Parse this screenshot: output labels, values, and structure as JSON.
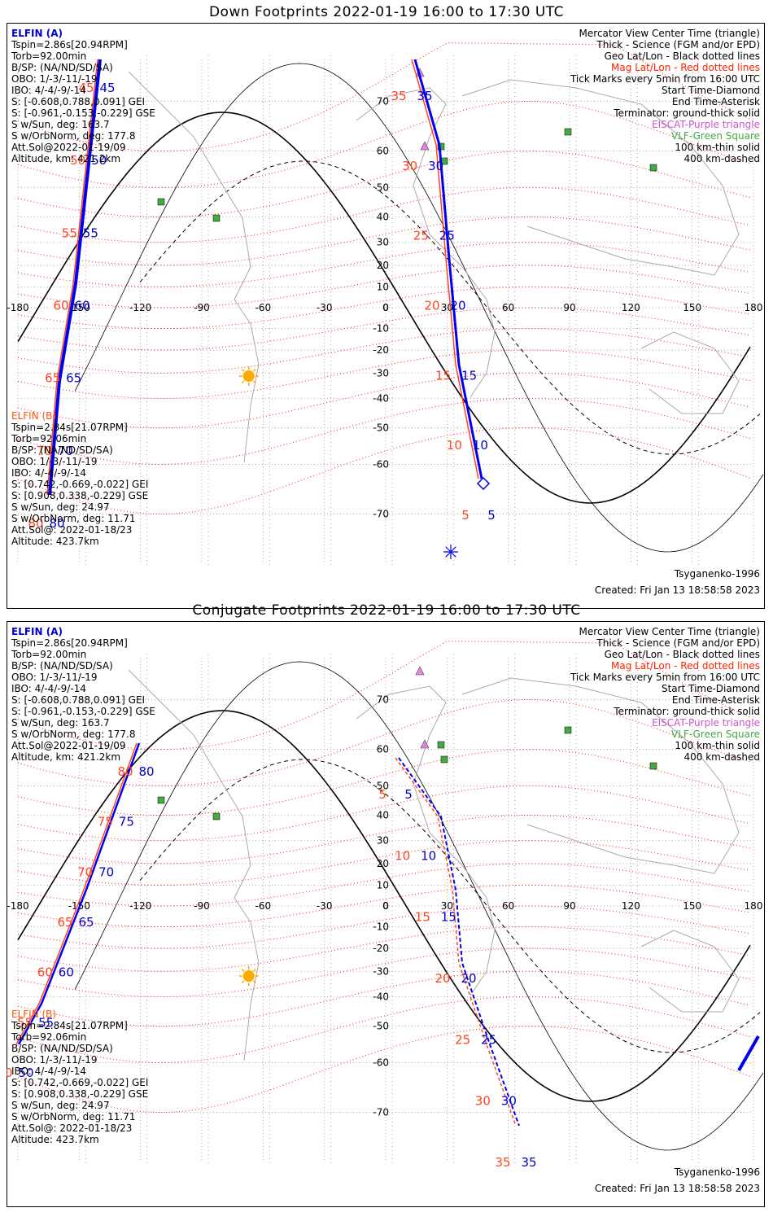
{
  "panels": [
    {
      "title": "Down Footprints 2022-01-19 16:00 to 17:30 UTC",
      "info_a": {
        "name": "ELFIN (A)",
        "lines": [
          "Tspin=2.86s[20.94RPM]",
          "Torb=92.00min",
          "B/SP: (NA/ND/SD/SA)",
          "OBO: 1/-3/-11/-19",
          "IBO: 4/-4/-9/-14",
          "S: [-0.608,0.788,0.091] GEI",
          "S: [-0.961,-0.153,-0.229] GSE",
          "S w/Sun, deg: 163.7",
          "S w/OrbNorm, deg: 177.8",
          "Att.Sol@2022-01-19/09",
          "Altitude, km: 421.2km"
        ]
      },
      "info_b": {
        "name": "ELFIN (B)",
        "lines": [
          "Tspin=2.84s[21.07RPM]",
          "Torb=92.06min",
          "B/SP: (NA/ND/SD/SA)",
          "OBO: 1/-3/-11/-19",
          "IBO: 4/-4/-9/-14",
          "S: [0.742,-0.669,-0.022] GEI",
          "S: [0.908,0.338,-0.229] GSE",
          "S w/Sun, deg: 24.97",
          "S w/OrbNorm, deg: 11.71",
          "Att.Sol@: 2022-01-18/23",
          "Altitude: 423.7km"
        ]
      },
      "legend": [
        {
          "text": "Mercator View Center Time (triangle)",
          "color": "#000000"
        },
        {
          "text": "Thick - Science (FGM and/or EPD)",
          "color": "#000000"
        },
        {
          "text": "Geo Lat/Lon - Black dotted lines",
          "color": "#000000"
        },
        {
          "text": "Mag Lat/Lon - Red dotted lines",
          "color": "#ff2200"
        },
        {
          "text": "Tick Marks every 5min from 16:00 UTC",
          "color": "#000000"
        },
        {
          "text": "Start Time-Diamond",
          "color": "#000000"
        },
        {
          "text": "End Time-Asterisk",
          "color": "#000000"
        },
        {
          "text": "Terminator: ground-thick solid",
          "color": "#000000"
        },
        {
          "text": "EISCAT-Purple triangle",
          "color": "#cc55cc"
        },
        {
          "text": "VLF-Green Square",
          "color": "#44aa44"
        },
        {
          "text": "100 km-thin solid",
          "color": "#000000"
        },
        {
          "text": "400 km-dashed",
          "color": "#000000"
        }
      ],
      "model": "Tsyganenko-1996",
      "created": "Created: Fri Jan 13 18:58:58 2023",
      "lon_labels": [
        "-180",
        "-150",
        "-120",
        "-90",
        "-60",
        "-30",
        "0",
        "30",
        "60",
        "90",
        "120",
        "150",
        "180"
      ],
      "lat_labels": [
        "70",
        "60",
        "50",
        "40",
        "30",
        "20",
        "10",
        "0",
        "-10",
        "-20",
        "-30",
        "-40",
        "-50",
        "-60",
        "-70"
      ],
      "track_a_labels": [
        "45",
        "50",
        "55",
        "60",
        "65",
        "70",
        "80"
      ],
      "track_b_labels": [
        "35",
        "30",
        "25",
        "20",
        "15",
        "10",
        "5"
      ]
    },
    {
      "title": "Conjugate Footprints 2022-01-19 16:00 to 17:30 UTC",
      "info_a": {
        "name": "ELFIN (A)",
        "lines": [
          "Tspin=2.86s[20.94RPM]",
          "Torb=92.00min",
          "B/SP: (NA/ND/SD/SA)",
          "OBO: 1/-3/-11/-19",
          "IBO: 4/-4/-9/-14",
          "S: [-0.608,0.788,0.091] GEI",
          "S: [-0.961,-0.153,-0.229] GSE",
          "S w/Sun, deg: 163.7",
          "S w/OrbNorm, deg: 177.8",
          "Att.Sol@2022-01-19/09",
          "Altitude, km: 421.2km"
        ]
      },
      "info_b": {
        "name": "ELFIN (B)",
        "lines": [
          "Tspin=2.84s[21.07RPM]",
          "Torb=92.06min",
          "B/SP: (NA/ND/SD/SA)",
          "OBO: 1/-3/-11/-19",
          "IBO: 4/-4/-9/-14",
          "S: [0.742,-0.669,-0.022] GEI",
          "S: [0.908,0.338,-0.229] GSE",
          "S w/Sun, deg: 24.97",
          "S w/OrbNorm, deg: 11.71",
          "Att.Sol@: 2022-01-18/23",
          "Altitude: 423.7km"
        ]
      },
      "legend": [
        {
          "text": "Mercator View Center Time (triangle)",
          "color": "#000000"
        },
        {
          "text": "Thick - Science (FGM and/or EPD)",
          "color": "#000000"
        },
        {
          "text": "Geo Lat/Lon - Black dotted lines",
          "color": "#000000"
        },
        {
          "text": "Mag Lat/Lon - Red dotted lines",
          "color": "#ff2200"
        },
        {
          "text": "Tick Marks every 5min from 16:00 UTC",
          "color": "#000000"
        },
        {
          "text": "Start Time-Diamond",
          "color": "#000000"
        },
        {
          "text": "End Time-Asterisk",
          "color": "#000000"
        },
        {
          "text": "Terminator: ground-thick solid",
          "color": "#000000"
        },
        {
          "text": "EISCAT-Purple triangle",
          "color": "#cc55cc"
        },
        {
          "text": "VLF-Green Square",
          "color": "#44aa44"
        },
        {
          "text": "100 km-thin solid",
          "color": "#000000"
        },
        {
          "text": "400 km-dashed",
          "color": "#000000"
        }
      ],
      "model": "Tsyganenko-1996",
      "created": "Created: Fri Jan 13 18:58:58 2023",
      "lon_labels": [
        "-180",
        "-150",
        "-120",
        "-90",
        "-60",
        "-30",
        "0",
        "30",
        "60",
        "90",
        "120",
        "150",
        "180"
      ],
      "lat_labels": [
        "70",
        "60",
        "50",
        "40",
        "30",
        "20",
        "10",
        "0",
        "-10",
        "-20",
        "-30",
        "-40",
        "-50",
        "-60",
        "-70"
      ],
      "track_a_labels": [
        "80",
        "75",
        "70",
        "65",
        "60",
        "55",
        "50"
      ],
      "track_b_labels": [
        "5",
        "10",
        "15",
        "20",
        "25",
        "30",
        "35"
      ]
    }
  ]
}
